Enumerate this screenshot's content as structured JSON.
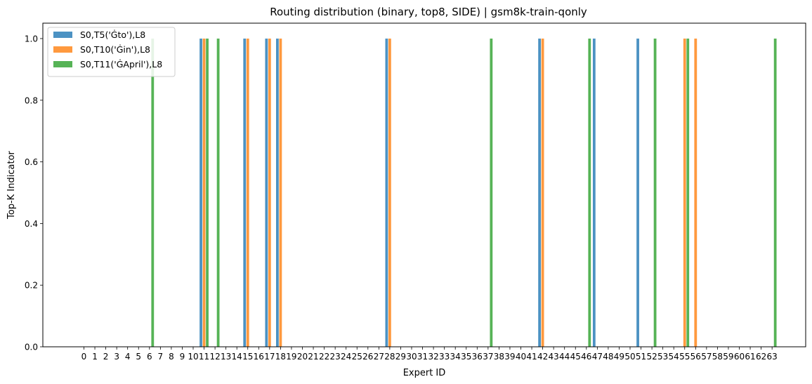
{
  "chart_data": {
    "type": "bar",
    "title": "Routing distribution (binary, top8, SIDE) | gsm8k-train-qonly",
    "xlabel": "Expert ID",
    "ylabel": "Top-K Indicator",
    "ylim": [
      0,
      1.05
    ],
    "yticks": [
      "0.0",
      "0.2",
      "0.4",
      "0.6",
      "0.8",
      "1.0"
    ],
    "categories": [
      "0",
      "1",
      "2",
      "3",
      "4",
      "5",
      "6",
      "7",
      "8",
      "9",
      "10",
      "11",
      "12",
      "13",
      "14",
      "15",
      "16",
      "17",
      "18",
      "19",
      "20",
      "21",
      "22",
      "23",
      "24",
      "25",
      "26",
      "27",
      "28",
      "29",
      "30",
      "31",
      "32",
      "33",
      "34",
      "35",
      "36",
      "37",
      "38",
      "39",
      "40",
      "41",
      "42",
      "43",
      "44",
      "45",
      "46",
      "47",
      "48",
      "49",
      "50",
      "51",
      "52",
      "53",
      "54",
      "55",
      "56",
      "57",
      "58",
      "59",
      "60",
      "61",
      "62",
      "63"
    ],
    "legend_position": "top-left",
    "grid": false,
    "series": [
      {
        "name": "S0,T5('Ġto'),L8",
        "color": "#1f77b4",
        "active_experts": [
          11,
          15,
          17,
          18,
          28,
          42,
          47,
          51
        ]
      },
      {
        "name": "S0,T10('Ġin'),L8",
        "color": "#ff7f0e",
        "active_experts": [
          11,
          15,
          17,
          18,
          28,
          42,
          55,
          56
        ]
      },
      {
        "name": "S0,T11('ĠApril'),L8",
        "color": "#2ca02c",
        "active_experts": [
          6,
          11,
          12,
          37,
          46,
          52,
          55,
          63
        ]
      }
    ]
  }
}
